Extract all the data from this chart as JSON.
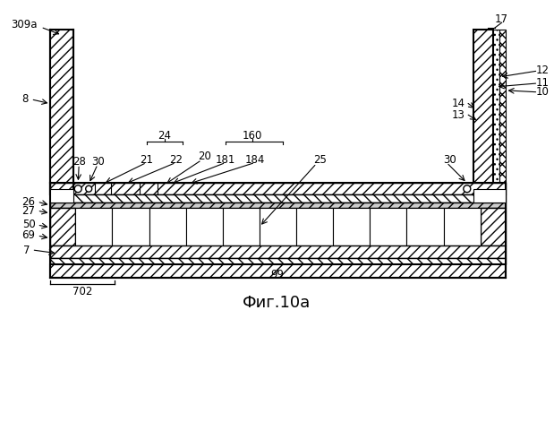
{
  "title": "Фиг.10а",
  "bg_color": "#ffffff",
  "line_color": "#000000",
  "fig_width": 6.19,
  "fig_height": 5.0,
  "dpi": 100
}
